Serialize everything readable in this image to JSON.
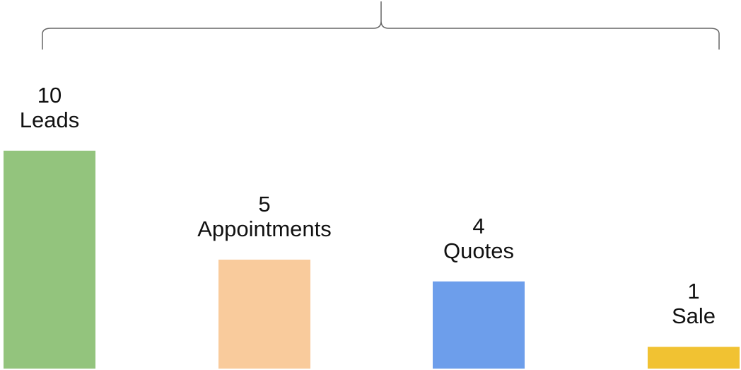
{
  "chart_data": {
    "type": "bar",
    "categories": [
      "Leads",
      "Appointments",
      "Quotes",
      "Sale"
    ],
    "values": [
      10,
      5,
      4,
      1
    ],
    "colors": [
      "#93c47d",
      "#f9cb9c",
      "#6d9eeb",
      "#f1c232"
    ],
    "ylim": [
      0,
      10
    ],
    "grid": false,
    "legend": "none",
    "bracket_over_bars": true
  }
}
